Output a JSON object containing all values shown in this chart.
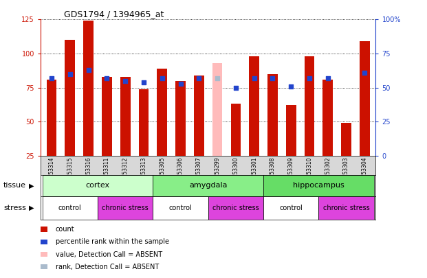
{
  "title": "GDS1794 / 1394965_at",
  "samples": [
    "GSM53314",
    "GSM53315",
    "GSM53316",
    "GSM53311",
    "GSM53312",
    "GSM53313",
    "GSM53305",
    "GSM53306",
    "GSM53307",
    "GSM53299",
    "GSM53300",
    "GSM53301",
    "GSM53308",
    "GSM53309",
    "GSM53310",
    "GSM53302",
    "GSM53303",
    "GSM53304"
  ],
  "count_values": [
    81,
    110,
    124,
    83,
    83,
    74,
    89,
    80,
    84,
    93,
    63,
    98,
    85,
    62,
    98,
    81,
    49,
    109
  ],
  "is_absent": [
    false,
    false,
    false,
    false,
    false,
    false,
    false,
    false,
    false,
    true,
    false,
    false,
    false,
    false,
    false,
    false,
    false,
    false
  ],
  "percentile_values": [
    57,
    60,
    63,
    57,
    55,
    54,
    57,
    53,
    57,
    57,
    50,
    57,
    57,
    51,
    57,
    57,
    null,
    61
  ],
  "ylim_left": [
    25,
    125
  ],
  "ylim_right": [
    0,
    100
  ],
  "left_ticks": [
    25,
    50,
    75,
    100,
    125
  ],
  "right_ticks": [
    0,
    25,
    50,
    75,
    100
  ],
  "tissue_groups": [
    {
      "label": "cortex",
      "start": 0,
      "end": 6,
      "color": "#ccffcc"
    },
    {
      "label": "amygdala",
      "start": 6,
      "end": 12,
      "color": "#88ee88"
    },
    {
      "label": "hippocampus",
      "start": 12,
      "end": 18,
      "color": "#66dd66"
    }
  ],
  "stress_groups": [
    {
      "label": "control",
      "start": 0,
      "end": 3,
      "color": "#ffffff"
    },
    {
      "label": "chronic stress",
      "start": 3,
      "end": 6,
      "color": "#dd44dd"
    },
    {
      "label": "control",
      "start": 6,
      "end": 9,
      "color": "#ffffff"
    },
    {
      "label": "chronic stress",
      "start": 9,
      "end": 12,
      "color": "#dd44dd"
    },
    {
      "label": "control",
      "start": 12,
      "end": 15,
      "color": "#ffffff"
    },
    {
      "label": "chronic stress",
      "start": 15,
      "end": 18,
      "color": "#dd44dd"
    }
  ],
  "bar_color": "#cc1100",
  "absent_bar_color": "#ffbbbb",
  "dot_color": "#2244cc",
  "absent_dot_color": "#aabbcc",
  "bar_width": 0.55,
  "dot_size": 18,
  "bg_color": "#ffffff",
  "left_axis_color": "#cc1100",
  "right_axis_color": "#2244cc",
  "gray_bg": "#d8d8d8"
}
